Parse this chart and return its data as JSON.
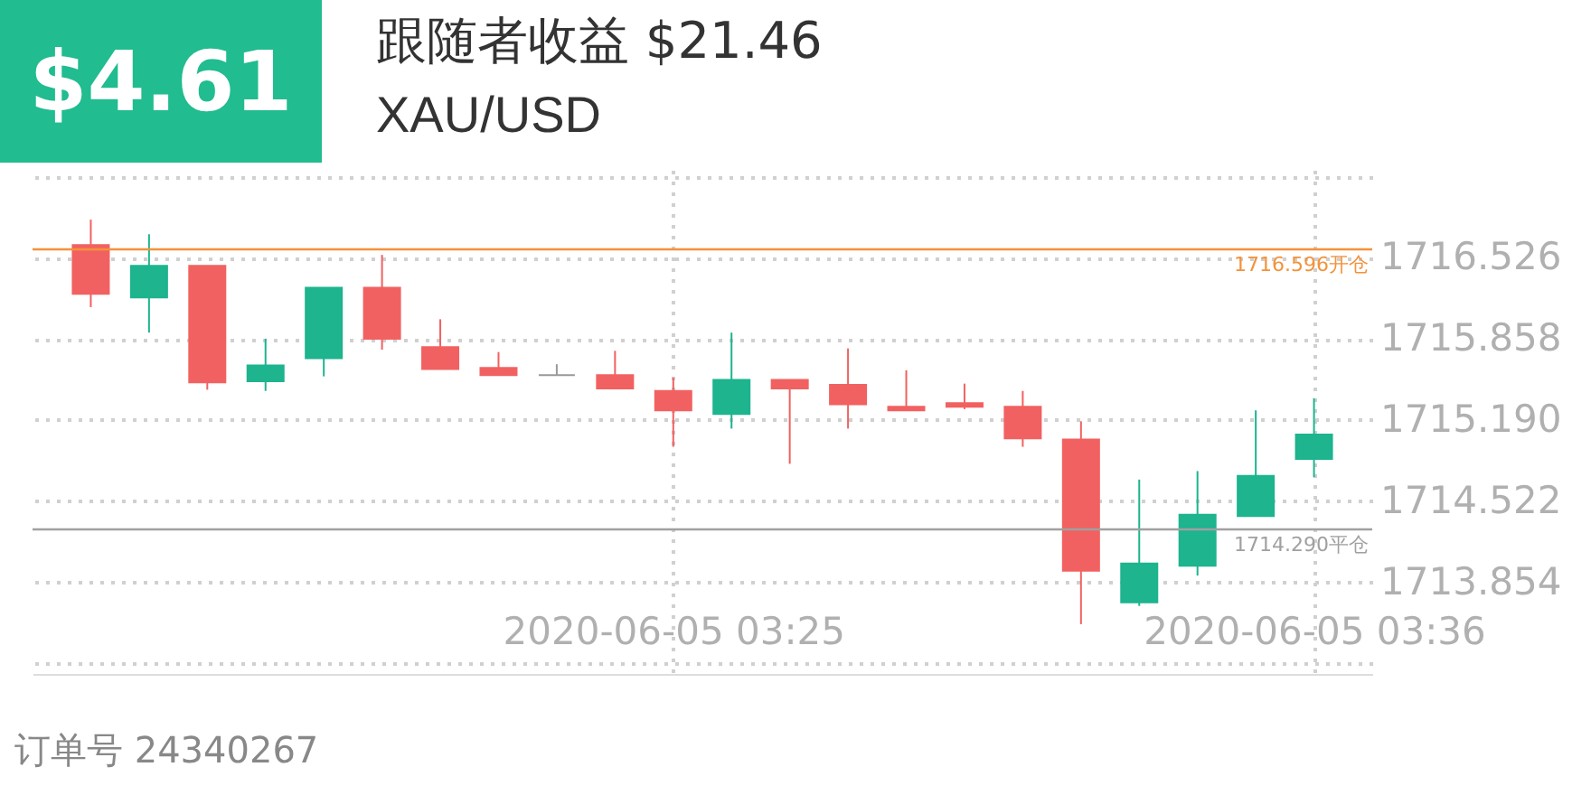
{
  "chart_data": {
    "type": "candlestick",
    "title": "跟随者收益 $21.46",
    "subtitle": "XAU/USD",
    "annotations": [
      "$4.61",
      "订单号 24340267"
    ],
    "x": [
      "2020-06-05T03:15",
      "2020-06-05T03:16",
      "2020-06-05T03:17",
      "2020-06-05T03:18",
      "2020-06-05T03:19",
      "2020-06-05T03:20",
      "2020-06-05T03:21",
      "2020-06-05T03:22",
      "2020-06-05T03:23",
      "2020-06-05T03:24",
      "2020-06-05T03:25",
      "2020-06-05T03:26",
      "2020-06-05T03:27",
      "2020-06-05T03:28",
      "2020-06-05T03:29",
      "2020-06-05T03:30",
      "2020-06-05T03:31",
      "2020-06-05T03:32",
      "2020-06-05T03:33",
      "2020-06-05T03:34",
      "2020-06-05T03:35",
      "2020-06-05T03:36"
    ],
    "ohlc": [
      [
        1716.63,
        1716.84,
        1716.12,
        1716.23
      ],
      [
        1716.2,
        1716.72,
        1715.91,
        1716.46
      ],
      [
        1716.46,
        1716.46,
        1715.44,
        1715.5
      ],
      [
        1715.51,
        1715.86,
        1715.43,
        1715.64
      ],
      [
        1715.7,
        1716.28,
        1715.55,
        1716.28
      ],
      [
        1716.28,
        1716.55,
        1715.77,
        1715.86
      ],
      [
        1715.79,
        1716.02,
        1715.61,
        1715.61
      ],
      [
        1715.62,
        1715.75,
        1715.56,
        1715.56
      ],
      [
        1715.56,
        1715.65,
        1715.56,
        1715.56
      ],
      [
        1715.56,
        1715.76,
        1715.45,
        1715.45
      ],
      [
        1715.43,
        1715.54,
        1714.97,
        1715.27
      ],
      [
        1715.24,
        1715.91,
        1715.12,
        1715.52
      ],
      [
        1715.52,
        1715.52,
        1714.83,
        1715.45
      ],
      [
        1715.48,
        1715.78,
        1715.12,
        1715.32
      ],
      [
        1715.3,
        1715.6,
        1715.27,
        1715.27
      ],
      [
        1715.33,
        1715.49,
        1715.28,
        1715.3
      ],
      [
        1715.3,
        1715.43,
        1714.97,
        1715.04
      ],
      [
        1715.03,
        1715.18,
        1713.51,
        1713.95
      ],
      [
        1713.69,
        1714.7,
        1713.66,
        1714.01
      ],
      [
        1713.99,
        1714.77,
        1713.91,
        1714.41
      ],
      [
        1714.4,
        1715.27,
        1714.4,
        1714.73
      ],
      [
        1714.87,
        1715.37,
        1714.72,
        1715.07
      ]
    ],
    "colors": [
      "#f26161",
      "#1db48e",
      "#f26161",
      "#1db48e",
      "#1db48e",
      "#f26161",
      "#f26161",
      "#f26161",
      "#999999",
      "#f26161",
      "#f26161",
      "#1db48e",
      "#f26161",
      "#f26161",
      "#f26161",
      "#f26161",
      "#f26161",
      "#f26161",
      "#1db48e",
      "#1db48e",
      "#1db48e",
      "#1db48e"
    ],
    "xlim": [
      "2020-06-05T03:14",
      "2020-06-05T03:37"
    ],
    "xticks": [
      {
        "value": "2020-06-05T03:25",
        "label": "2020-06-05 03:25"
      },
      {
        "value": "2020-06-05T03:36",
        "label": "2020-06-05 03:36"
      }
    ],
    "ylim": [
      1713.1,
      1717.25
    ],
    "yticks": [
      {
        "value": 1713.186,
        "label": null
      },
      1713.854,
      1714.522,
      {
        "value": 1715.19,
        "label": "1715.190"
      },
      1715.858,
      1716.526,
      {
        "value": 1717.194,
        "label": null
      }
    ],
    "ref_lines": [
      {
        "axis": "y",
        "value": 1716.596,
        "label": "1716.596开仓",
        "color": "#f3923a"
      },
      {
        "axis": "y",
        "value": 1714.29,
        "label": "1714.290平仓",
        "color": "#a0a0a0"
      }
    ],
    "grid": true
  }
}
